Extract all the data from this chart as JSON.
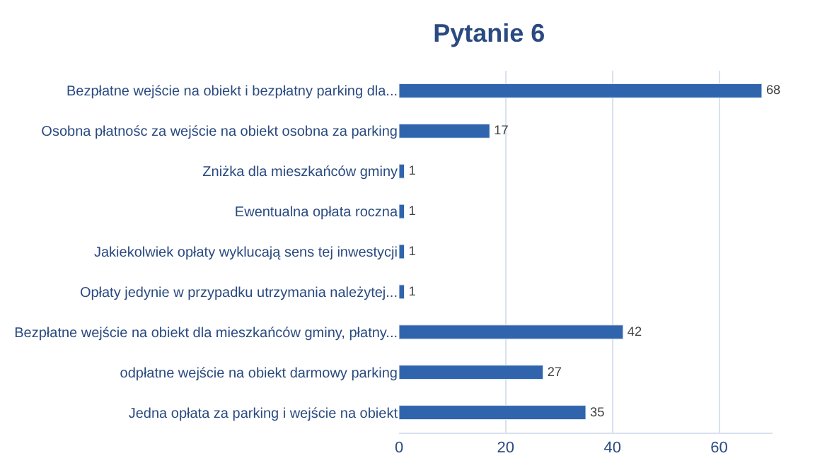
{
  "chart_data": {
    "type": "bar",
    "orientation": "horizontal",
    "title": "Pytanie 6",
    "categories": [
      "Bezpłatne wejście na obiekt i bezpłatny parking dla...",
      "Osobna płatnośc za wejście na obiekt osobna za parking",
      "Zniżka dla mieszkańców gminy",
      "Ewentualna opłata roczna",
      "Jakiekolwiek opłaty wyklucają sens tej inwestycji",
      "Opłaty jedynie w przypadku utrzymania należytej...",
      "Bezpłatne wejście na obiekt dla mieszkańców gminy, płatny...",
      "odpłatne wejście na obiekt darmowy parking",
      "Jedna opłata za parking i wejście na obiekt"
    ],
    "values": [
      68,
      17,
      1,
      1,
      1,
      1,
      42,
      27,
      35
    ],
    "color": "#3064ad",
    "xlim": [
      0,
      70
    ],
    "xticks": [
      0,
      20,
      40,
      60
    ],
    "grid": "x",
    "data_labels": true,
    "legend": false
  }
}
